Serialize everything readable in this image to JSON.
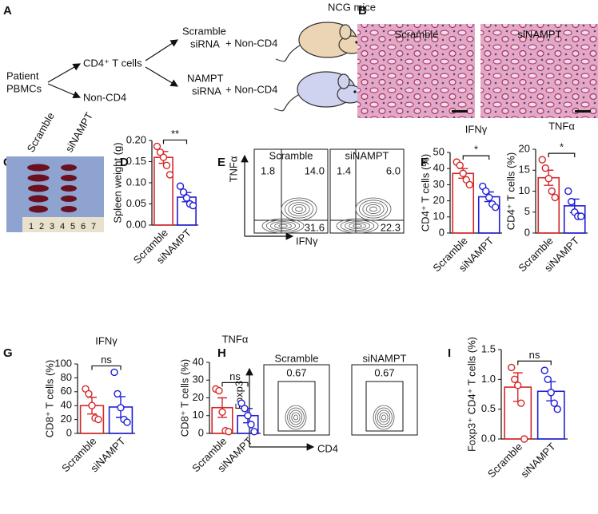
{
  "panel_labels": [
    "A",
    "B",
    "C",
    "D",
    "E",
    "F",
    "G",
    "H",
    "I"
  ],
  "diagram": {
    "source": [
      "Patient",
      "PBMCs"
    ],
    "cells": [
      "CD4⁺ T cells",
      "Non-CD4"
    ],
    "branches": [
      {
        "treatment": [
          "Scramble",
          "siRNA"
        ],
        "plus": "+ Non-CD4"
      },
      {
        "treatment": [
          "NAMPT",
          "siRNA"
        ],
        "plus": "+ Non-CD4"
      }
    ],
    "mice": "NCG mice"
  },
  "histology": {
    "labels": [
      "Scramble",
      "siNAMPT"
    ]
  },
  "spleen_photo": {
    "labels": [
      "Scramble",
      "siNAMPT"
    ],
    "ruler": [
      "1",
      "2",
      "3",
      "4",
      "5",
      "6",
      "7"
    ]
  },
  "flow_E": {
    "y_axis": "TNFα",
    "x_axis": "IFNγ",
    "plots": [
      {
        "title": "Scramble",
        "quadrants": [
          "1.8",
          "14.0",
          "31.6"
        ]
      },
      {
        "title": "siNAMPT",
        "quadrants": [
          "1.4",
          "6.0",
          "22.3"
        ]
      }
    ]
  },
  "flow_H": {
    "y_axis": "Foxp3",
    "x_axis": "CD4",
    "plots": [
      {
        "title": "Scramble",
        "gate": "0.67"
      },
      {
        "title": "siNAMPT",
        "gate": "0.67"
      }
    ]
  },
  "chart_data": [
    {
      "type": "bar",
      "y_label": "Spleen weight (g)",
      "categories": [
        "Scramble",
        "siNAMPT"
      ],
      "values": [
        0.16,
        0.066
      ],
      "errors": [
        0.014,
        0.011
      ],
      "points": [
        [
          0.186,
          0.172,
          0.16,
          0.141,
          0.119
        ],
        [
          0.092,
          0.078,
          0.064,
          0.05,
          0.046
        ]
      ],
      "colors": [
        "#d62728",
        "#1f1fd6"
      ],
      "ylim": [
        0,
        0.2
      ],
      "yticks": [
        {
          "value": 0,
          "label": "0.00"
        },
        {
          "value": 0.05,
          "label": "0.05"
        },
        {
          "value": 0.1,
          "label": "0.10"
        },
        {
          "value": 0.15,
          "label": "0.15"
        },
        {
          "value": 0.2,
          "label": "0.20"
        }
      ],
      "significance": "**"
    },
    {
      "type": "bar",
      "title": "IFNγ",
      "y_label": "CD4⁺ T cells (%)",
      "categories": [
        "Scramble",
        "siNAMPT"
      ],
      "values": [
        37,
        22.5
      ],
      "errors": [
        3,
        3
      ],
      "points": [
        [
          44,
          42,
          37,
          33,
          30
        ],
        [
          29,
          26,
          22,
          18,
          16
        ]
      ],
      "colors": [
        "#d62728",
        "#1f1fd6"
      ],
      "ylim": [
        0,
        50
      ],
      "yticks": [
        0,
        10,
        20,
        30,
        40,
        50
      ],
      "significance": "*"
    },
    {
      "type": "bar",
      "title": "TNFα",
      "y_label": "CD4⁺ T cells (%)",
      "categories": [
        "Scramble",
        "siNAMPT"
      ],
      "values": [
        13.2,
        6.5
      ],
      "errors": [
        1.8,
        1.6
      ],
      "points": [
        [
          17.5,
          15.5,
          13,
          10,
          8.5
        ],
        [
          10,
          7.5,
          5,
          4,
          4
        ]
      ],
      "colors": [
        "#d62728",
        "#1f1fd6"
      ],
      "ylim": [
        0,
        20
      ],
      "yticks": [
        0,
        5,
        10,
        15,
        20
      ],
      "significance": "*"
    },
    {
      "type": "bar",
      "title": "IFNγ",
      "y_label": "CD8⁺ T cells (%)",
      "categories": [
        "Scramble",
        "siNAMPT"
      ],
      "values": [
        40,
        38
      ],
      "errors": [
        12,
        15
      ],
      "points": [
        [
          64,
          57,
          40,
          22,
          20
        ],
        [
          88,
          57,
          37,
          20,
          16
        ]
      ],
      "colors": [
        "#d62728",
        "#1f1fd6"
      ],
      "ylim": [
        0,
        100
      ],
      "yticks": [
        0,
        20,
        40,
        60,
        80,
        100
      ],
      "significance": "ns"
    },
    {
      "type": "bar",
      "title": "TNFα",
      "y_label": "CD8⁺ T cells (%)",
      "categories": [
        "Scramble",
        "siNAMPT"
      ],
      "values": [
        14.5,
        10
      ],
      "errors": [
        5.5,
        4
      ],
      "points": [
        [
          25,
          24,
          12,
          1.5,
          1
        ],
        [
          17,
          14,
          10,
          5,
          1
        ]
      ],
      "colors": [
        "#d62728",
        "#1f1fd6"
      ],
      "ylim": [
        0,
        40
      ],
      "yticks": [
        0,
        10,
        20,
        30,
        40
      ],
      "significance": "ns"
    },
    {
      "type": "bar",
      "y_label": "Foxp3⁺ CD4⁺ T cells (%)",
      "categories": [
        "Scramble",
        "siNAMPT"
      ],
      "values": [
        0.87,
        0.8
      ],
      "errors": [
        0.24,
        0.16
      ],
      "points": [
        [
          1.2,
          1.0,
          0.9,
          0.6,
          0.0
        ],
        [
          1.15,
          1.0,
          0.78,
          0.6,
          0.5
        ]
      ],
      "colors": [
        "#d62728",
        "#1f1fd6"
      ],
      "ylim": [
        0,
        1.5
      ],
      "yticks": [
        {
          "value": 0,
          "label": "0.0"
        },
        {
          "value": 0.5,
          "label": "0.5"
        },
        {
          "value": 1,
          "label": "1.0"
        },
        {
          "value": 1.5,
          "label": "1.5"
        }
      ],
      "significance": "ns"
    }
  ]
}
